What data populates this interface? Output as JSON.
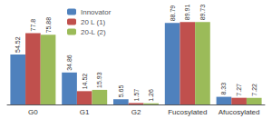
{
  "chart_data": {
    "type": "bar",
    "categories": [
      "G0",
      "G1",
      "G2",
      "Fucosylated",
      "Afucosylated"
    ],
    "series": [
      {
        "name": "Innovator",
        "color": "#4f81bd",
        "values": [
          54.52,
          34.86,
          5.65,
          88.79,
          8.33
        ]
      },
      {
        "name": "20 L (1)",
        "color": "#c0504d",
        "values": [
          77.8,
          14.52,
          1.57,
          89.91,
          7.27
        ]
      },
      {
        "name": "20-L (2)",
        "color": "#9bbb59",
        "values": [
          75.88,
          15.93,
          1.26,
          89.73,
          7.22
        ]
      }
    ],
    "ylim": [
      0,
      100
    ],
    "grid": false,
    "legend": "upper left",
    "data_labels": true,
    "tick_labels": "x"
  }
}
